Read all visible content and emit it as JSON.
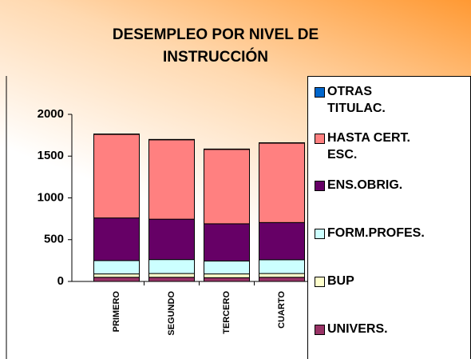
{
  "chart_data": {
    "type": "stacked_bar",
    "title": "DESEMPLEO POR NIVEL DE INSTRUCCIÓN",
    "categories": [
      "PRIMERO",
      "SEGUNDO",
      "TERCERO",
      "CUARTO"
    ],
    "series": [
      {
        "name": "UNIVERS.",
        "color": "#993366",
        "values": [
          50,
          50,
          45,
          50
        ]
      },
      {
        "name": "BUP",
        "color": "#ffffcc",
        "values": [
          40,
          45,
          45,
          45
        ]
      },
      {
        "name": "FORM.PROFES.",
        "color": "#ccffff",
        "values": [
          160,
          167,
          155,
          165
        ]
      },
      {
        "name": "ENS.OBRIG.",
        "color": "#660066",
        "values": [
          510,
          483,
          445,
          445
        ]
      },
      {
        "name": "HASTA CERT. ESC.",
        "color": "#ff8080",
        "values": [
          1000,
          950,
          890,
          950
        ]
      },
      {
        "name": "OTRAS TITULAC.",
        "color": "#0066cc",
        "values": [
          5,
          5,
          5,
          5
        ]
      }
    ],
    "ylim": [
      0,
      2000
    ],
    "yticks": [
      0,
      500,
      1000,
      1500,
      2000
    ],
    "grid": false,
    "legend": "right"
  }
}
